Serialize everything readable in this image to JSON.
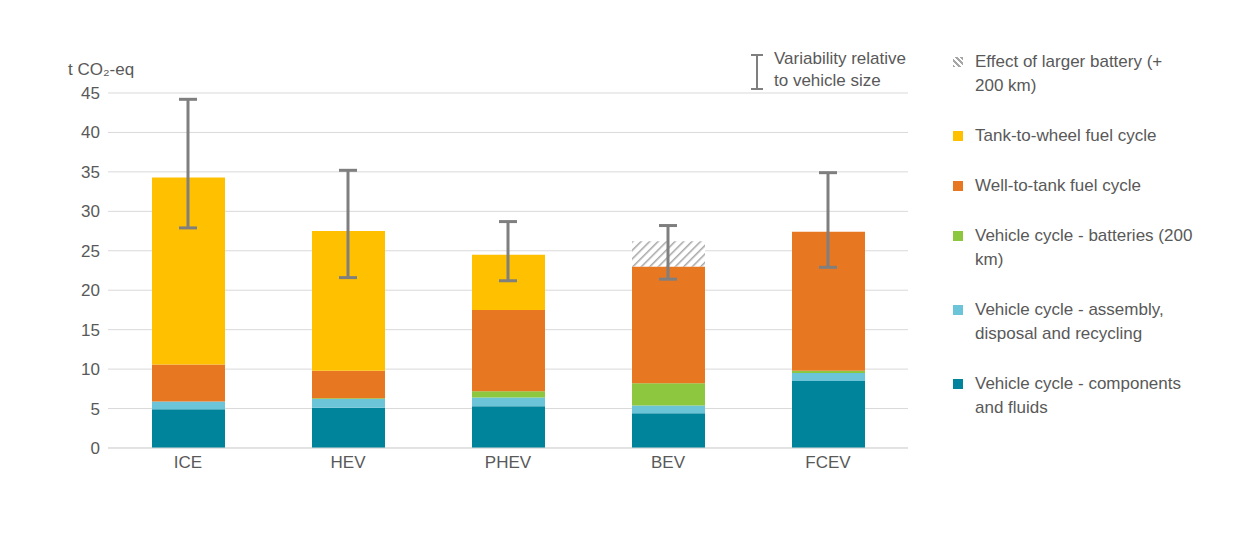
{
  "chart_data": {
    "type": "bar",
    "stacked": true,
    "y_label": "t CO₂-eq",
    "categories": [
      "ICE",
      "HEV",
      "PHEV",
      "BEV",
      "FCEV"
    ],
    "series": [
      {
        "name": "Vehicle cycle - components and fluids",
        "color": "#00849c",
        "values": [
          4.9,
          5.1,
          5.3,
          4.4,
          8.5
        ]
      },
      {
        "name": "Vehicle cycle - assembly, disposal and recycling",
        "color": "#6cc4d8",
        "values": [
          1.0,
          1.1,
          1.1,
          1.0,
          1.0
        ]
      },
      {
        "name": "Vehicle cycle - batteries (200 km)",
        "color": "#8dc63f",
        "values": [
          0,
          0.1,
          0.8,
          2.8,
          0.3
        ]
      },
      {
        "name": "Well-to-tank fuel cycle",
        "color": "#e87722",
        "values": [
          4.7,
          3.5,
          10.3,
          14.8,
          17.6
        ]
      },
      {
        "name": "Tank-to-wheel fuel cycle",
        "color": "#ffc000",
        "values": [
          23.7,
          17.7,
          7.0,
          0,
          0
        ]
      },
      {
        "name": "Effect of larger battery (+ 200 km)",
        "color": "#a6a6a6",
        "values": [
          0,
          0,
          0,
          3.2,
          0
        ]
      }
    ],
    "error_bars": {
      "name": "Variability relative to vehicle size",
      "low": [
        27.9,
        21.6,
        21.2,
        21.4,
        22.9
      ],
      "high": [
        44.2,
        35.2,
        28.7,
        28.2,
        34.9
      ]
    },
    "ylim": [
      0,
      45
    ],
    "yticks": [
      0,
      5,
      10,
      15,
      20,
      25,
      30,
      35,
      40,
      45
    ],
    "grid": true,
    "legend": "right"
  }
}
